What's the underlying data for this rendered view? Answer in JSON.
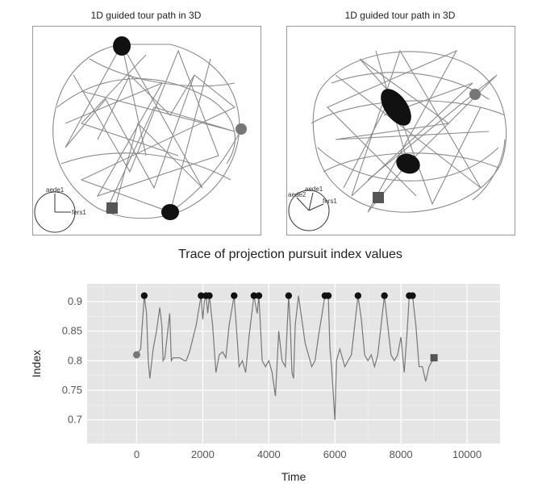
{
  "panels": [
    {
      "title": "1D guided tour path in 3D",
      "axes_labels": [
        "aede1",
        "fers1"
      ],
      "marker_colors": {
        "start": "#777777",
        "end": "#555555",
        "peak": "#111111"
      }
    },
    {
      "title": "1D guided tour path in 3D",
      "axes_labels": [
        "aede2",
        "aede1",
        "fers1"
      ],
      "marker_colors": {
        "start": "#777777",
        "end": "#555555",
        "peak": "#111111"
      }
    }
  ],
  "chart_data": {
    "type": "line",
    "title": "Trace of projection pursuit index values",
    "xlabel": "Time",
    "ylabel": "Index",
    "xlim": [
      -1500,
      11000
    ],
    "ylim": [
      0.66,
      0.93
    ],
    "x_ticks": [
      0,
      2000,
      4000,
      6000,
      8000,
      10000
    ],
    "y_ticks": [
      0.7,
      0.75,
      0.8,
      0.85,
      0.9
    ],
    "grid": true,
    "background": "#e5e5e5",
    "line_color": "#777777",
    "start_point": {
      "x": 0,
      "y": 0.81
    },
    "end_point": {
      "x": 9000,
      "y": 0.805
    },
    "peak_points": [
      {
        "x": 230,
        "y": 0.91
      },
      {
        "x": 1950,
        "y": 0.91
      },
      {
        "x": 2100,
        "y": 0.91
      },
      {
        "x": 2200,
        "y": 0.91
      },
      {
        "x": 2950,
        "y": 0.91
      },
      {
        "x": 3550,
        "y": 0.91
      },
      {
        "x": 3700,
        "y": 0.91
      },
      {
        "x": 4600,
        "y": 0.91
      },
      {
        "x": 5700,
        "y": 0.91
      },
      {
        "x": 5800,
        "y": 0.91
      },
      {
        "x": 6700,
        "y": 0.91
      },
      {
        "x": 7500,
        "y": 0.91
      },
      {
        "x": 8250,
        "y": 0.91
      },
      {
        "x": 8350,
        "y": 0.91
      }
    ],
    "trace": [
      [
        0,
        0.81
      ],
      [
        120,
        0.82
      ],
      [
        230,
        0.91
      ],
      [
        300,
        0.88
      ],
      [
        350,
        0.8
      ],
      [
        400,
        0.77
      ],
      [
        500,
        0.82
      ],
      [
        600,
        0.85
      ],
      [
        700,
        0.89
      ],
      [
        760,
        0.86
      ],
      [
        800,
        0.8
      ],
      [
        850,
        0.805
      ],
      [
        1000,
        0.88
      ],
      [
        1050,
        0.8
      ],
      [
        1100,
        0.805
      ],
      [
        1300,
        0.805
      ],
      [
        1450,
        0.8
      ],
      [
        1500,
        0.8
      ],
      [
        1600,
        0.815
      ],
      [
        1800,
        0.86
      ],
      [
        1950,
        0.91
      ],
      [
        2000,
        0.87
      ],
      [
        2050,
        0.9
      ],
      [
        2100,
        0.91
      ],
      [
        2150,
        0.88
      ],
      [
        2200,
        0.91
      ],
      [
        2300,
        0.86
      ],
      [
        2400,
        0.78
      ],
      [
        2500,
        0.81
      ],
      [
        2600,
        0.815
      ],
      [
        2700,
        0.805
      ],
      [
        2800,
        0.86
      ],
      [
        2950,
        0.91
      ],
      [
        3050,
        0.83
      ],
      [
        3100,
        0.79
      ],
      [
        3200,
        0.8
      ],
      [
        3300,
        0.78
      ],
      [
        3400,
        0.84
      ],
      [
        3550,
        0.91
      ],
      [
        3650,
        0.88
      ],
      [
        3700,
        0.91
      ],
      [
        3800,
        0.8
      ],
      [
        3900,
        0.79
      ],
      [
        4000,
        0.8
      ],
      [
        4100,
        0.78
      ],
      [
        4200,
        0.74
      ],
      [
        4300,
        0.85
      ],
      [
        4400,
        0.8
      ],
      [
        4500,
        0.79
      ],
      [
        4600,
        0.91
      ],
      [
        4650,
        0.86
      ],
      [
        4700,
        0.78
      ],
      [
        4750,
        0.77
      ],
      [
        4800,
        0.86
      ],
      [
        4900,
        0.91
      ],
      [
        5000,
        0.87
      ],
      [
        5100,
        0.83
      ],
      [
        5200,
        0.81
      ],
      [
        5300,
        0.79
      ],
      [
        5400,
        0.8
      ],
      [
        5500,
        0.84
      ],
      [
        5700,
        0.91
      ],
      [
        5800,
        0.91
      ],
      [
        5850,
        0.82
      ],
      [
        5900,
        0.79
      ],
      [
        6000,
        0.7
      ],
      [
        6050,
        0.8
      ],
      [
        6150,
        0.82
      ],
      [
        6300,
        0.79
      ],
      [
        6400,
        0.8
      ],
      [
        6500,
        0.81
      ],
      [
        6600,
        0.86
      ],
      [
        6700,
        0.91
      ],
      [
        6800,
        0.87
      ],
      [
        6900,
        0.81
      ],
      [
        7000,
        0.8
      ],
      [
        7100,
        0.81
      ],
      [
        7200,
        0.79
      ],
      [
        7300,
        0.81
      ],
      [
        7400,
        0.86
      ],
      [
        7500,
        0.91
      ],
      [
        7600,
        0.86
      ],
      [
        7700,
        0.81
      ],
      [
        7800,
        0.8
      ],
      [
        7900,
        0.81
      ],
      [
        8000,
        0.84
      ],
      [
        8100,
        0.78
      ],
      [
        8200,
        0.86
      ],
      [
        8250,
        0.91
      ],
      [
        8350,
        0.91
      ],
      [
        8450,
        0.86
      ],
      [
        8550,
        0.79
      ],
      [
        8650,
        0.79
      ],
      [
        8750,
        0.765
      ],
      [
        8850,
        0.79
      ],
      [
        9000,
        0.805
      ]
    ]
  }
}
